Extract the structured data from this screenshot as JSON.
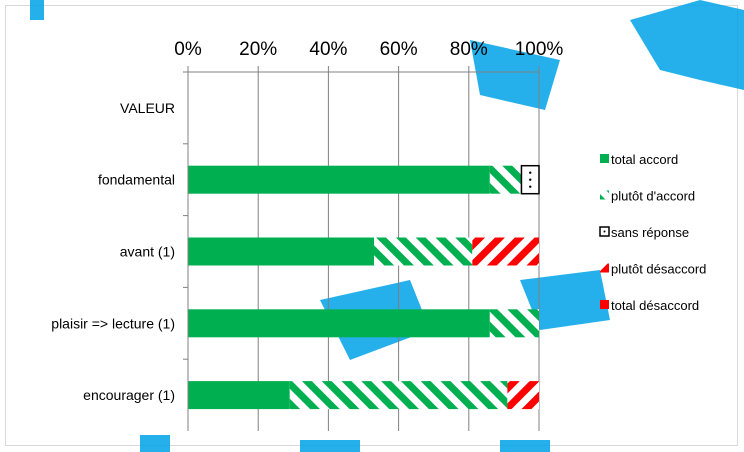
{
  "chart_data": {
    "type": "bar",
    "orientation": "horizontal",
    "stacked": true,
    "normalized_percent": true,
    "categories": [
      "VALEUR",
      "fondamental",
      "avant (1)",
      "plaisir => lecture (1)",
      "encourager (1)"
    ],
    "series": [
      {
        "name": "total accord",
        "color": "#00b050",
        "pattern": "solid",
        "values": [
          0,
          86,
          53,
          86,
          29
        ]
      },
      {
        "name": "plutôt d'accord",
        "color": "#00b050",
        "pattern": "diagonal-stripes",
        "values": [
          0,
          9,
          28,
          14,
          62
        ]
      },
      {
        "name": "sans réponse",
        "color": "#000000",
        "pattern": "dotted-outline",
        "values": [
          0,
          5,
          0,
          0,
          0
        ]
      },
      {
        "name": "plutôt désaccord",
        "color": "#ff0000",
        "pattern": "diagonal-stripes",
        "values": [
          0,
          0,
          19,
          0,
          9
        ]
      },
      {
        "name": "total désaccord",
        "color": "#ff0000",
        "pattern": "solid",
        "values": [
          0,
          0,
          0,
          0,
          0
        ]
      }
    ],
    "x_ticks": [
      "0%",
      "20%",
      "40%",
      "60%",
      "80%",
      "100%"
    ],
    "xlim": [
      0,
      100
    ],
    "grid": true,
    "legend_position": "right"
  }
}
